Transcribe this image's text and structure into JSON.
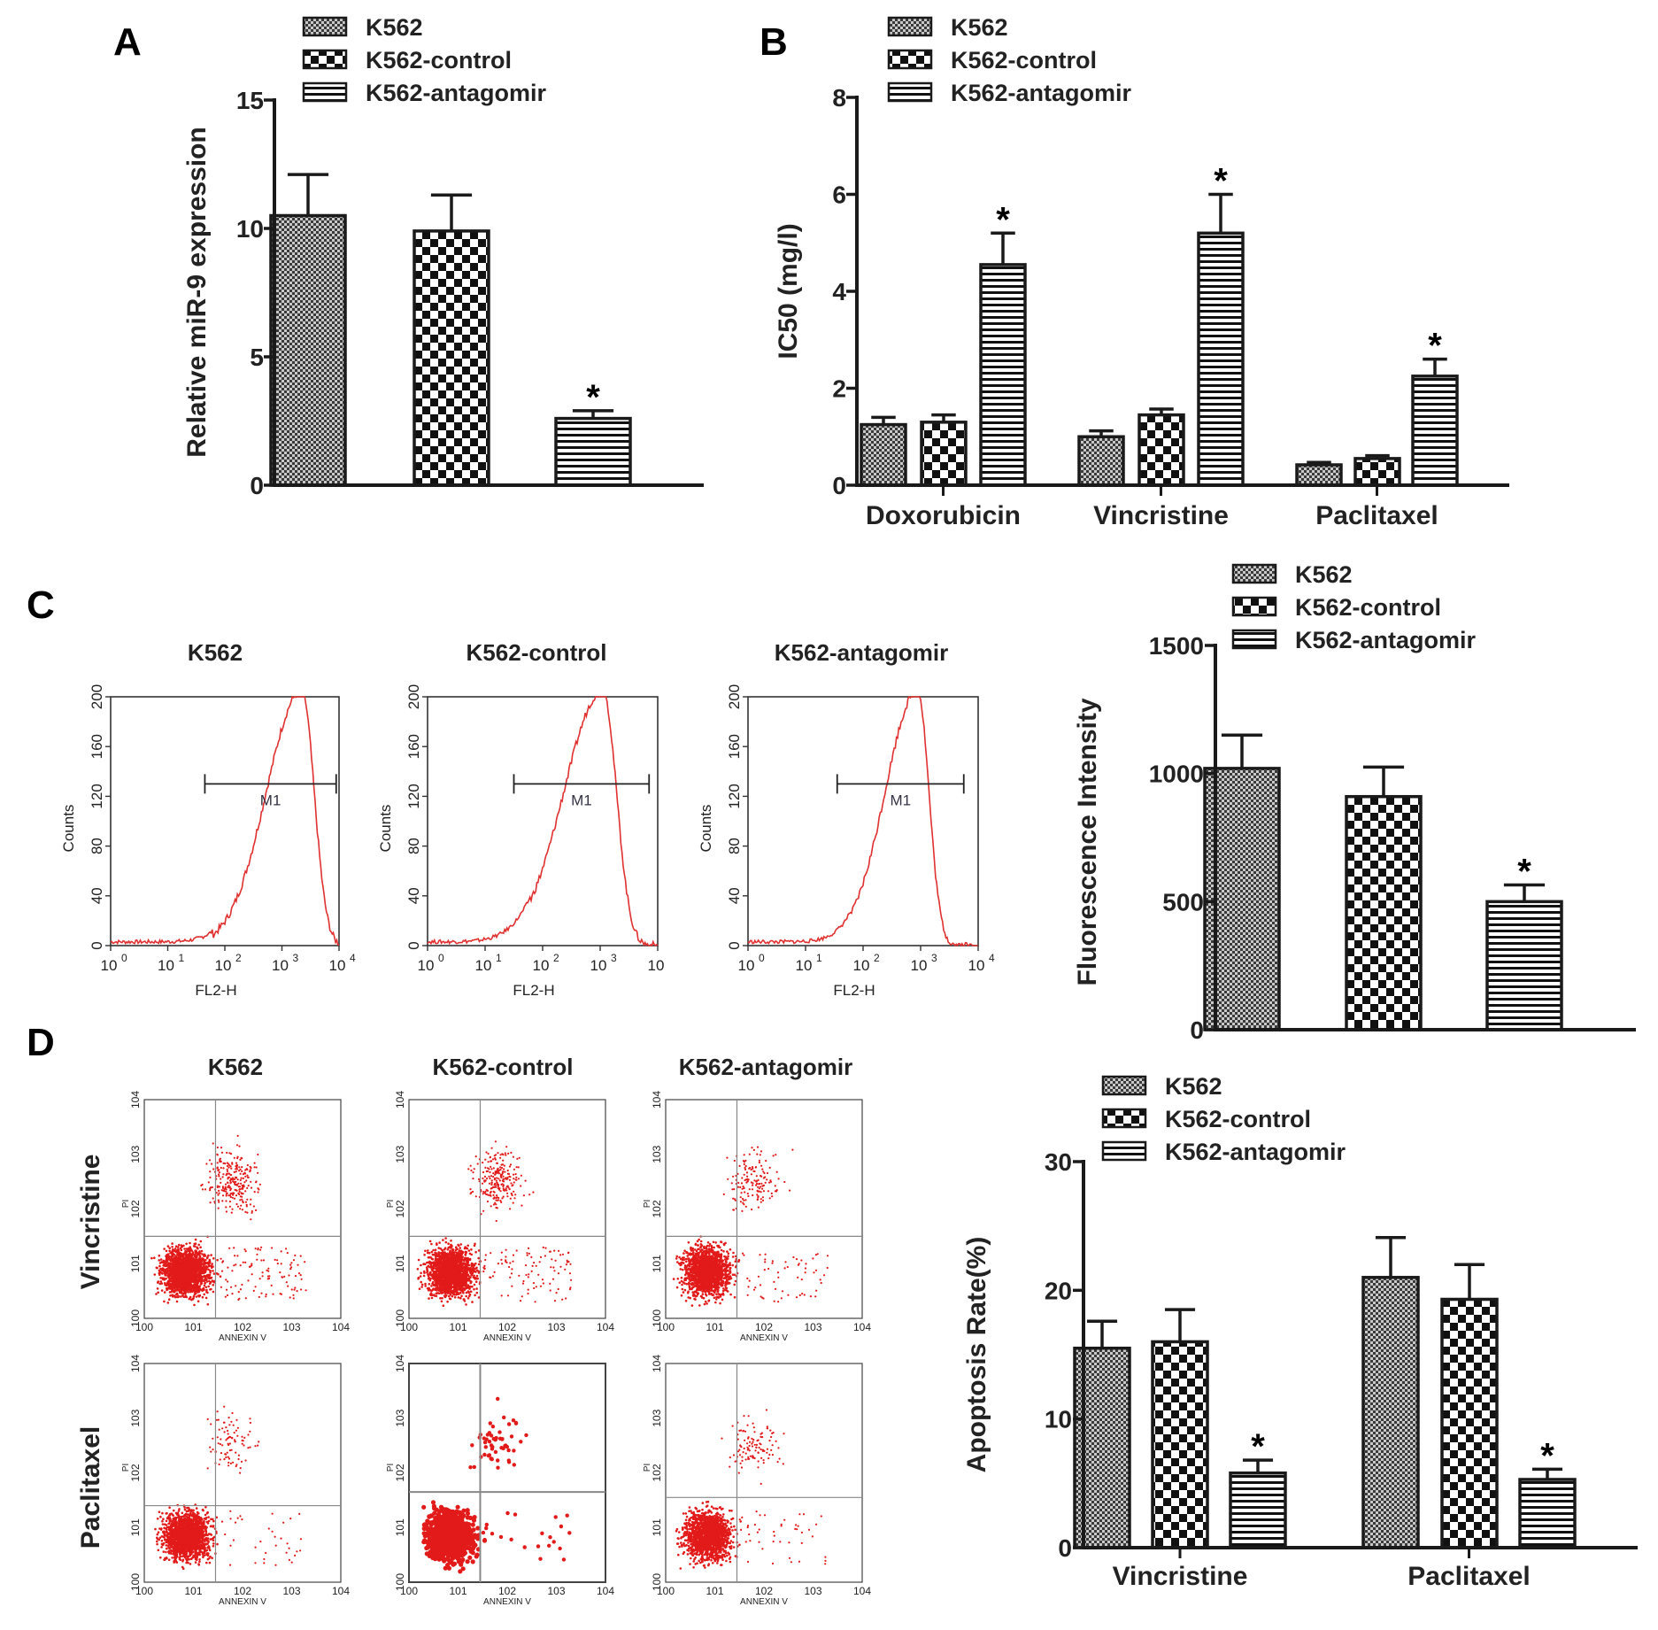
{
  "colors": {
    "axis": "#1a1a1a",
    "histogram": "#e03030",
    "dots": "#e21a1a",
    "quadrant": "#888888"
  },
  "legend_entries": [
    "K562",
    "K562-control",
    "K562-antagomir"
  ],
  "chart_data": [
    {
      "id": "A",
      "panel_letter": "A",
      "type": "bar",
      "ylabel": "Relative miR-9 expression",
      "ylim": [
        0,
        15
      ],
      "yticks": [
        0,
        5,
        10,
        15
      ],
      "legend_placement": "top",
      "categories": [
        ""
      ],
      "series": [
        {
          "name": "K562",
          "values": [
            10.5
          ],
          "errors": [
            1.6
          ],
          "pattern": "fine"
        },
        {
          "name": "K562-control",
          "values": [
            9.9
          ],
          "errors": [
            1.4
          ],
          "pattern": "checker"
        },
        {
          "name": "K562-antagomir",
          "values": [
            2.6
          ],
          "errors": [
            0.3
          ],
          "pattern": "stripes",
          "significance": "*"
        }
      ]
    },
    {
      "id": "B",
      "panel_letter": "B",
      "type": "bar",
      "ylabel": "IC50 (mg/l)",
      "ylim": [
        0,
        8
      ],
      "yticks": [
        0,
        2,
        4,
        6,
        8
      ],
      "legend_placement": "top",
      "categories": [
        "Doxorubicin",
        "Vincristine",
        "Paclitaxel"
      ],
      "series": [
        {
          "name": "K562",
          "values": [
            1.25,
            1.0,
            0.42
          ],
          "errors": [
            0.15,
            0.12,
            0.05
          ],
          "pattern": "fine"
        },
        {
          "name": "K562-control",
          "values": [
            1.3,
            1.45,
            0.55
          ],
          "errors": [
            0.15,
            0.12,
            0.06
          ],
          "pattern": "checker"
        },
        {
          "name": "K562-antagomir",
          "values": [
            4.55,
            5.2,
            2.25
          ],
          "errors": [
            0.65,
            0.8,
            0.35
          ],
          "pattern": "stripes",
          "significance": [
            "*",
            "*",
            "*"
          ]
        }
      ]
    },
    {
      "id": "C-bar",
      "panel_letter": "C",
      "type": "bar",
      "ylabel": "Fluorescence Intensity",
      "ylim": [
        0,
        1500
      ],
      "yticks": [
        0,
        500,
        1000,
        1500
      ],
      "legend_placement": "top",
      "categories": [
        ""
      ],
      "series": [
        {
          "name": "K562",
          "values": [
            1020
          ],
          "errors": [
            130
          ],
          "pattern": "fine"
        },
        {
          "name": "K562-control",
          "values": [
            910
          ],
          "errors": [
            115
          ],
          "pattern": "checker"
        },
        {
          "name": "K562-antagomir",
          "values": [
            500
          ],
          "errors": [
            65
          ],
          "pattern": "stripes",
          "significance": "*"
        }
      ]
    },
    {
      "id": "D-bar",
      "panel_letter": "D",
      "type": "bar",
      "ylabel": "Apoptosis Rate(%)",
      "ylim": [
        0,
        30
      ],
      "yticks": [
        0,
        10,
        20,
        30
      ],
      "legend_placement": "top",
      "categories": [
        "Vincristine",
        "Paclitaxel"
      ],
      "series": [
        {
          "name": "K562",
          "values": [
            15.5,
            21.0
          ],
          "errors": [
            2.1,
            3.1
          ],
          "pattern": "fine"
        },
        {
          "name": "K562-control",
          "values": [
            16.0,
            19.3
          ],
          "errors": [
            2.5,
            2.7
          ],
          "pattern": "checker"
        },
        {
          "name": "K562-antagomir",
          "values": [
            5.8,
            5.3
          ],
          "errors": [
            1.0,
            0.8
          ],
          "pattern": "stripes",
          "significance": [
            "*",
            "*"
          ]
        }
      ]
    },
    {
      "id": "C-histograms",
      "type": "histogram",
      "xlabel": "FL2-H",
      "ylabel": "Counts",
      "x_scale": "log",
      "xticks": [
        "10",
        "1",
        "10",
        "2",
        "10",
        "3",
        "10",
        "4"
      ],
      "ylim": [
        0,
        200
      ],
      "yticks": [
        0,
        40,
        80,
        120,
        160,
        200
      ],
      "gate_label": "M1",
      "panels": [
        {
          "title": "K562",
          "peak_log": 3.35,
          "width": 0.55,
          "gate": [
            1.65,
            3.95
          ],
          "last_tick_text": "10"
        },
        {
          "title": "K562-control",
          "peak_log": 3.05,
          "width": 0.6,
          "gate": [
            1.5,
            3.85
          ],
          "last_tick_text": "10"
        },
        {
          "title": "K562-antagomir",
          "peak_log": 2.95,
          "width": 0.5,
          "gate": [
            1.55,
            3.75
          ],
          "last_tick_text": "10"
        }
      ]
    },
    {
      "id": "D-scatter",
      "type": "scatter",
      "xlabel": "ANNEXIN V",
      "ylabel": "PI",
      "x_scale": "log",
      "y_scale": "log",
      "ticks": [
        "10",
        "0",
        "1",
        "2",
        "3",
        "4"
      ],
      "column_titles": [
        "K562",
        "K562-control",
        "K562-antagomir"
      ],
      "row_labels": [
        "Vincristine",
        "Paclitaxel"
      ],
      "panels": [
        {
          "row": 0,
          "col": 0,
          "n": 1700,
          "upper_n": 260,
          "dot": 1.3,
          "quad": [
            1.45,
            1.5
          ]
        },
        {
          "row": 0,
          "col": 1,
          "n": 1700,
          "upper_n": 240,
          "dot": 1.3,
          "quad": [
            1.45,
            1.5
          ]
        },
        {
          "row": 0,
          "col": 2,
          "n": 1500,
          "upper_n": 150,
          "dot": 1.3,
          "quad": [
            1.45,
            1.5
          ]
        },
        {
          "row": 1,
          "col": 0,
          "n": 1700,
          "upper_n": 90,
          "dot": 1.3,
          "quad": [
            1.45,
            1.4
          ]
        },
        {
          "row": 1,
          "col": 1,
          "n": 900,
          "upper_n": 55,
          "dot": 2.6,
          "quad": [
            1.45,
            1.65
          ]
        },
        {
          "row": 1,
          "col": 2,
          "n": 1500,
          "upper_n": 110,
          "dot": 1.3,
          "quad": [
            1.45,
            1.55
          ]
        }
      ]
    }
  ]
}
